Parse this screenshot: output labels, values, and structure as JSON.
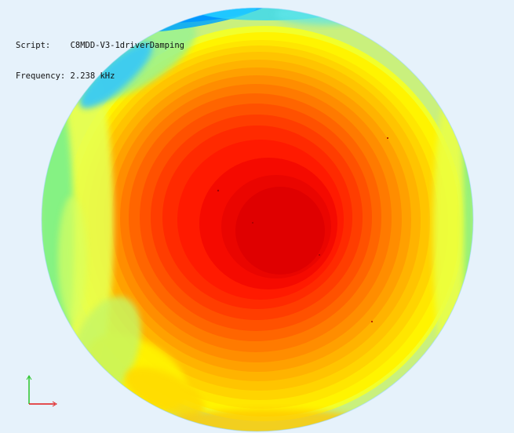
{
  "overlay": {
    "script_label": "Script:",
    "script_value": "C8MDD-V3-1driverDamping",
    "frequency_label": "Frequency:",
    "frequency_value": "2.238 kHz"
  },
  "colors": {
    "background": "#e6f2fb",
    "peak": "#df0000",
    "high": "#ff1a00",
    "mid": "#ff7a00",
    "orange_yellow": "#ffb300",
    "yellow": "#fff400",
    "green": "#66f07a",
    "cyan": "#14b8ff",
    "blue": "#0049ff",
    "axis_y": "#2ac52a",
    "axis_x": "#e01818"
  }
}
